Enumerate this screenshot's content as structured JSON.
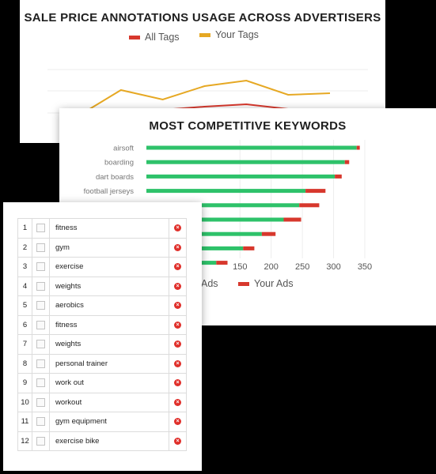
{
  "colors": {
    "background": "#000000",
    "card": "#ffffff",
    "all_tags": "#d7382d",
    "your_tags": "#e6a823",
    "all_ads": "#2ec26a",
    "your_ads": "#d7382d"
  },
  "chart_data": [
    {
      "type": "line",
      "title": "SALE PRICE ANNOTATIONS USAGE ACROSS ADVERTISERS",
      "legend_position": "top",
      "series": [
        {
          "name": "All Tags",
          "color": "#d7382d",
          "values": [
            null,
            45,
            49,
            53,
            56,
            50,
            40
          ]
        },
        {
          "name": "Your Tags",
          "color": "#e6a823",
          "values": [
            42,
            74,
            62,
            79,
            86,
            68,
            70
          ]
        }
      ],
      "ylim": [
        0,
        130
      ],
      "grid": true
    },
    {
      "type": "bar",
      "orientation": "horizontal",
      "stacked": true,
      "title": "MOST COMPETITIVE KEYWORDS",
      "categories": [
        "airsoft",
        "boarding",
        "dart boards",
        "football jerseys",
        "",
        "",
        "",
        "",
        ""
      ],
      "series": [
        {
          "name": "",
          "color": "#2ec26a",
          "values": [
            337,
            318,
            302,
            255,
            245,
            220,
            185,
            155,
            112
          ]
        },
        {
          "name": "Your Ads",
          "color": "#d7382d",
          "values": [
            5,
            7,
            11,
            32,
            32,
            28,
            22,
            18,
            18
          ]
        }
      ],
      "x_ticks": [
        "150",
        "200",
        "250",
        "300",
        "350"
      ],
      "xlim": [
        0,
        350
      ],
      "legend_labels": [
        "Ads",
        "Your Ads"
      ],
      "legend_position": "bottom",
      "grid": true
    }
  ],
  "top_chart": {
    "title": "SALE PRICE ANNOTATIONS USAGE ACROSS ADVERTISERS",
    "legend": [
      {
        "label": "All Tags",
        "color": "#d7382d"
      },
      {
        "label": "Your Tags",
        "color": "#e6a823"
      }
    ]
  },
  "mid_chart": {
    "title": "MOST COMPETITIVE KEYWORDS",
    "legend": [
      {
        "label": "Ads",
        "color": "#2ec26a"
      },
      {
        "label": "Your Ads",
        "color": "#d7382d"
      }
    ]
  },
  "keywords": [
    {
      "num": "1",
      "keyword": "fitness"
    },
    {
      "num": "2",
      "keyword": "gym"
    },
    {
      "num": "3",
      "keyword": "exercise"
    },
    {
      "num": "4",
      "keyword": "weights"
    },
    {
      "num": "5",
      "keyword": "aerobics"
    },
    {
      "num": "6",
      "keyword": "fitness"
    },
    {
      "num": "7",
      "keyword": "weights"
    },
    {
      "num": "8",
      "keyword": "personal trainer"
    },
    {
      "num": "9",
      "keyword": "work out"
    },
    {
      "num": "10",
      "keyword": "workout"
    },
    {
      "num": "11",
      "keyword": "gym equipment"
    },
    {
      "num": "12",
      "keyword": "exercise bike"
    }
  ]
}
